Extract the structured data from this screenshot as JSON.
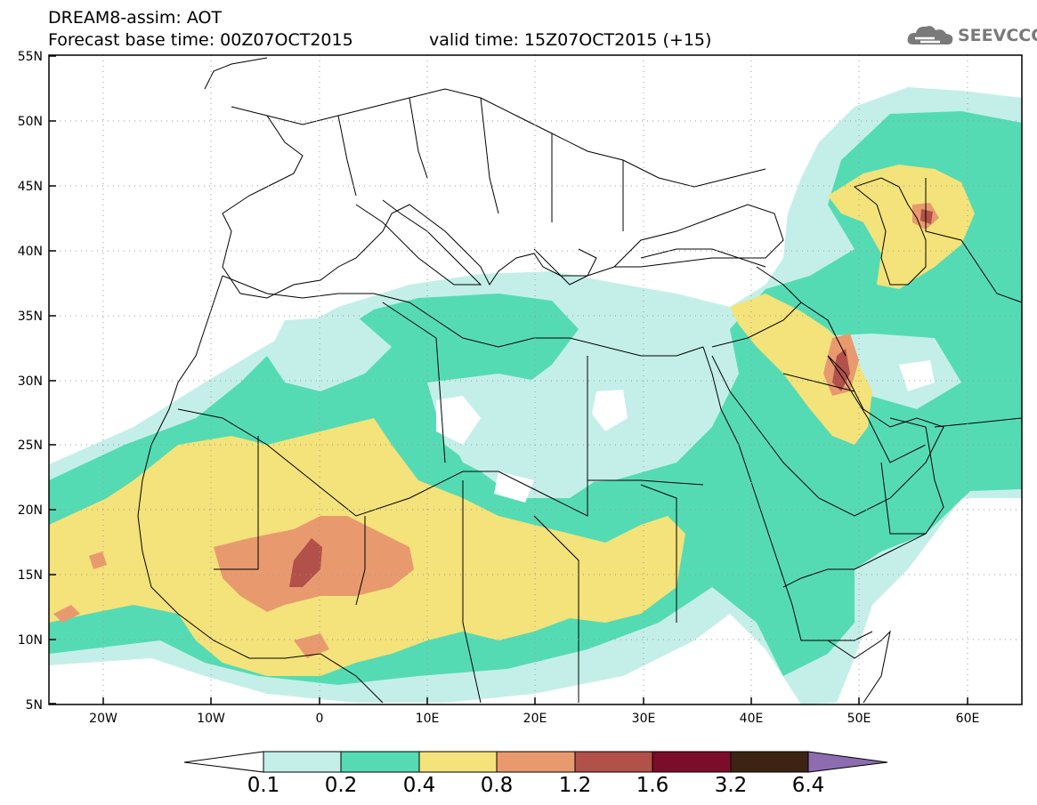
{
  "header": {
    "line1": "DREAM8-assim: AOT",
    "line2": "Forecast base time: 00Z07OCT2015",
    "line3": "valid time: 15Z07OCT2015 (+15)"
  },
  "logo": {
    "text": "SEEVCCC",
    "icon": "cloud-icon"
  },
  "map": {
    "projection": "lat-lon",
    "lon_range": [
      -25,
      65
    ],
    "lat_range": [
      5,
      55
    ],
    "lat_labels": [
      "5N",
      "10N",
      "15N",
      "20N",
      "25N",
      "30N",
      "35N",
      "40N",
      "45N",
      "50N",
      "55N"
    ],
    "lon_labels": [
      "20W",
      "10W",
      "0",
      "10E",
      "20E",
      "30E",
      "40E",
      "50E",
      "60E"
    ],
    "grid": "dotted"
  },
  "colorbar": {
    "labels": [
      "0.1",
      "0.2",
      "0.4",
      "0.8",
      "1.2",
      "1.6",
      "3.2",
      "6.4"
    ],
    "colors": [
      "#ffffff",
      "#c4efe8",
      "#55dbb3",
      "#f4e27a",
      "#e89a6e",
      "#b2504a",
      "#7b0d2a",
      "#3c2313",
      "#8e6cb0"
    ]
  },
  "colors": {
    "c1": "#c4efe8",
    "c2": "#55dbb3",
    "c3": "#f4e27a",
    "c4": "#e89a6e",
    "c5": "#b2504a"
  }
}
